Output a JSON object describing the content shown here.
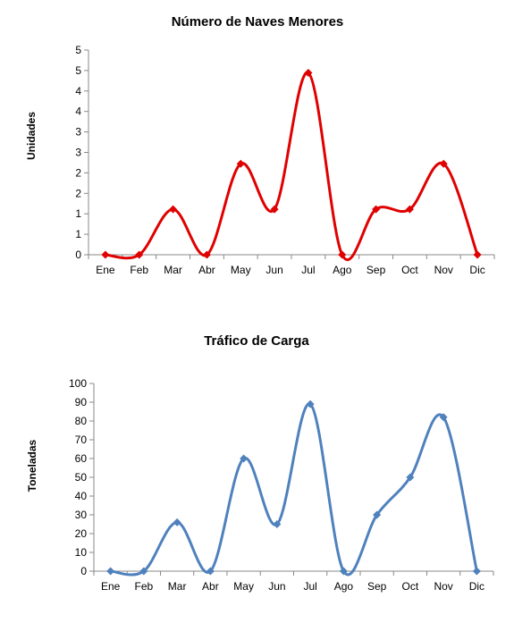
{
  "chart_data": [
    {
      "type": "line",
      "title": "Número de Naves Menores",
      "xlabel": "",
      "ylabel": "Unidades",
      "categories": [
        "Ene",
        "Feb",
        "Mar",
        "Abr",
        "May",
        "Jun",
        "Jul",
        "Ago",
        "Sep",
        "Oct",
        "Nov",
        "Dic"
      ],
      "y_tick_labels": [
        "0",
        "1",
        "1",
        "2",
        "2",
        "3",
        "3",
        "4",
        "4",
        "5",
        "5"
      ],
      "ylim": [
        0,
        4.5
      ],
      "y_tick_step": 0.45,
      "series": [
        {
          "values": [
            0,
            0,
            1,
            0,
            2,
            1,
            4,
            0,
            1,
            1,
            2,
            0
          ]
        }
      ],
      "smooth": true,
      "marker": "diamond",
      "color": "#e00000",
      "grid": false,
      "legend": "none"
    },
    {
      "type": "line",
      "title": "Tráfico de Carga",
      "xlabel": "",
      "ylabel": "Toneladas",
      "categories": [
        "Ene",
        "Feb",
        "Mar",
        "Abr",
        "May",
        "Jun",
        "Jul",
        "Ago",
        "Sep",
        "Oct",
        "Nov",
        "Dic"
      ],
      "y_tick_labels": [
        "0",
        "10",
        "20",
        "30",
        "40",
        "50",
        "60",
        "70",
        "80",
        "90",
        "100"
      ],
      "ylim": [
        0,
        100
      ],
      "y_tick_step": 10,
      "series": [
        {
          "values": [
            0,
            0,
            26,
            0,
            60,
            25,
            89,
            0,
            30,
            50,
            82,
            0
          ]
        }
      ],
      "smooth": true,
      "marker": "diamond",
      "color": "#4f81bd",
      "grid": false,
      "legend": "none"
    }
  ]
}
